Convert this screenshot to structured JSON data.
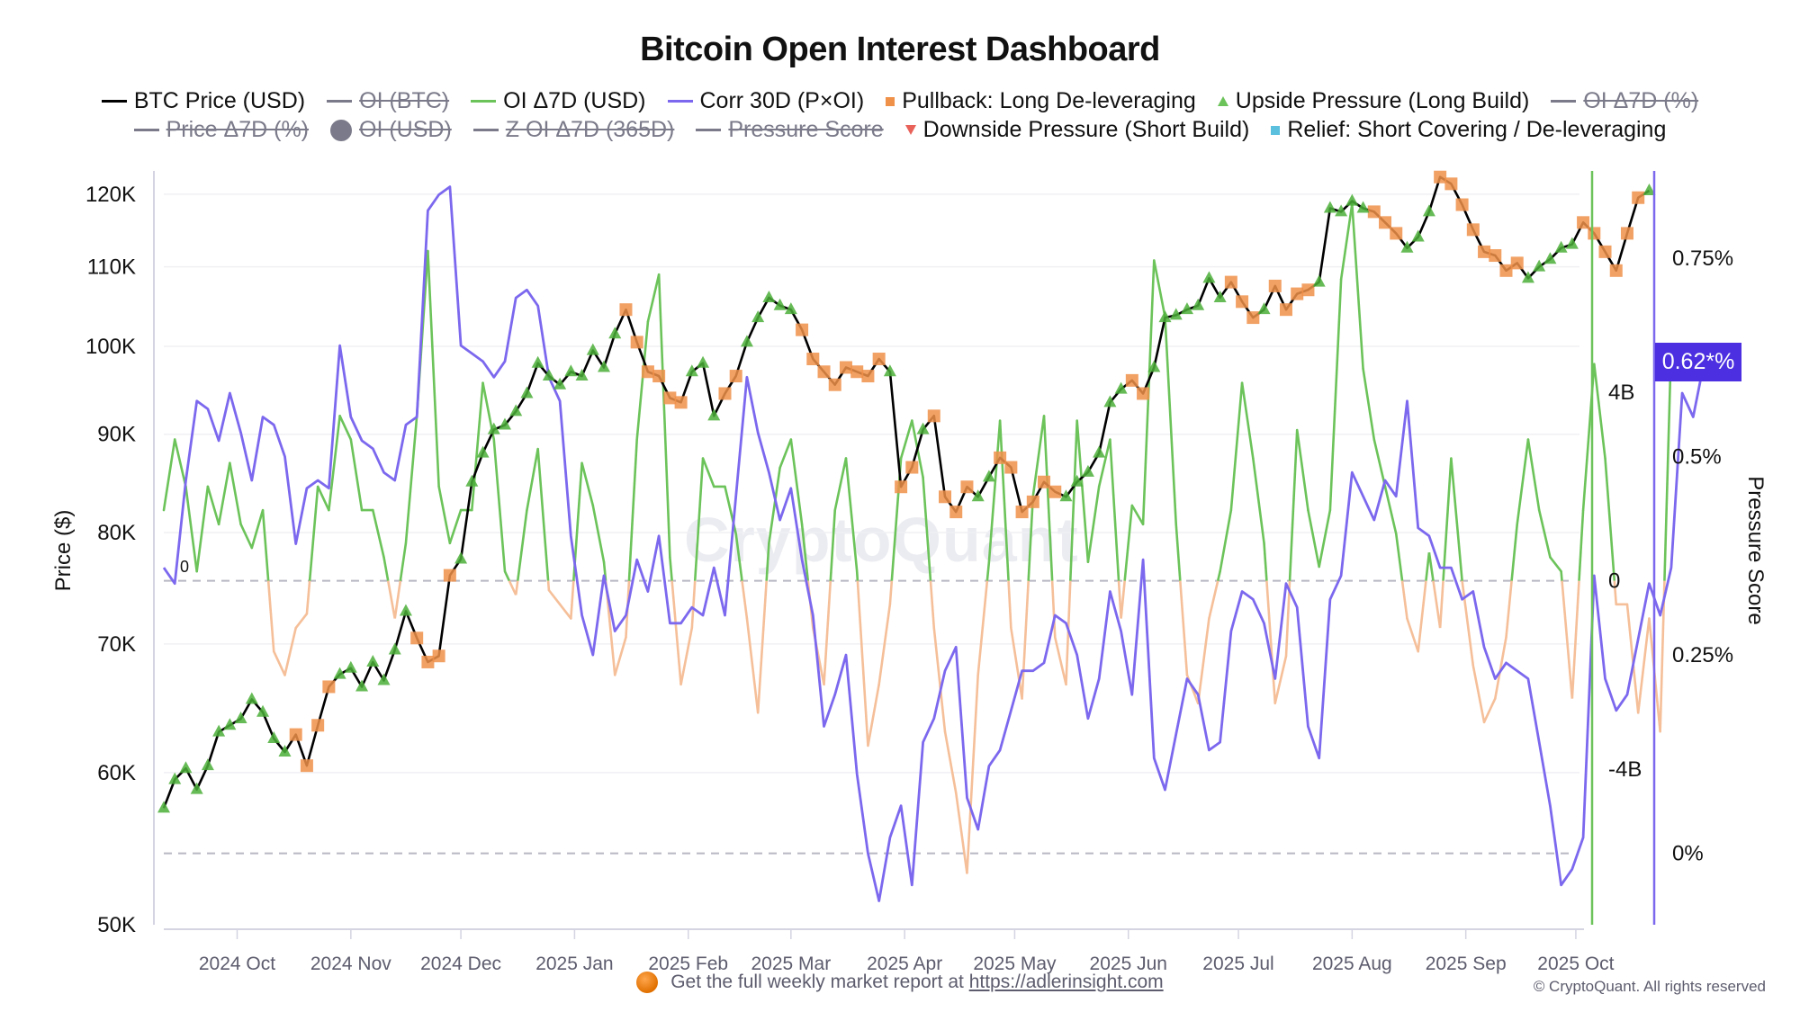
{
  "page": {
    "title": "Bitcoin Open Interest Dashboard",
    "watermark": "CryptoQuant",
    "footer_text": "Get the full weekly market report at",
    "footer_link": "https://adlerinsight.com",
    "copyright": "© CryptoQuant. All rights reserved",
    "current_value_badge": "0.62*%"
  },
  "legend": {
    "row1": [
      {
        "label": "BTC Price (USD)",
        "marker": "line",
        "color": "#000000",
        "active": true
      },
      {
        "label": "OI (BTC)",
        "marker": "line",
        "color": "#7a7a8a",
        "active": false
      },
      {
        "label": "OI Δ7D (USD)",
        "marker": "line",
        "color": "#6cc35a",
        "active": true
      },
      {
        "label": "Corr 30D (P×OI)",
        "marker": "line",
        "color": "#7b68ee",
        "active": true
      },
      {
        "label": "Pullback: Long De-leveraging",
        "marker": "square",
        "color": "#f0914a",
        "active": true
      },
      {
        "label": "Upside Pressure (Long Build)",
        "marker": "triangle-up",
        "color": "#6cc35a",
        "active": true
      },
      {
        "label": "OI Δ7D (%)",
        "marker": "line",
        "color": "#7a7a8a",
        "active": false
      }
    ],
    "row2": [
      {
        "label": "Price Δ7D (%)",
        "marker": "line",
        "color": "#7a7a8a",
        "active": false
      },
      {
        "label": "OI (USD)",
        "marker": "dot",
        "color": "#7a7a8a",
        "active": false
      },
      {
        "label": "Z OI Δ7D (365D)",
        "marker": "line",
        "color": "#7a7a8a",
        "active": false
      },
      {
        "label": "Pressure Score",
        "marker": "line",
        "color": "#7a7a8a",
        "active": false
      },
      {
        "label": "Downside Pressure (Short Build)",
        "marker": "triangle-down",
        "color": "#e8625a",
        "active": true
      },
      {
        "label": "Relief: Short Covering / De-leveraging",
        "marker": "square",
        "color": "#5bc0de",
        "active": true
      }
    ]
  },
  "chart_data": {
    "type": "line",
    "title": "Bitcoin Open Interest Dashboard",
    "x_start": "2024-09-11",
    "x_end": "2025-10-02",
    "x_step_days": 3,
    "xlabel": "",
    "x_tick_labels": [
      "2024 Oct",
      "2024 Nov",
      "2024 Dec",
      "2025 Jan",
      "2025 Feb",
      "2025 Mar",
      "2025 Apr",
      "2025 May",
      "2025 Jun",
      "2025 Jul",
      "2025 Aug",
      "2025 Sep",
      "2025 Oct"
    ],
    "x_tick_dates": [
      "2024-10-01",
      "2024-11-01",
      "2024-12-01",
      "2025-01-01",
      "2025-02-01",
      "2025-03-01",
      "2025-04-01",
      "2025-05-01",
      "2025-06-01",
      "2025-07-01",
      "2025-08-01",
      "2025-09-01",
      "2025-10-01"
    ],
    "axes": {
      "price": {
        "label": "Price ($)",
        "scale": "log",
        "range": [
          50000,
          125000
        ],
        "ticks": [
          50000,
          60000,
          70000,
          80000,
          90000,
          100000,
          110000,
          120000
        ],
        "tick_labels": [
          "50K",
          "60K",
          "70K",
          "80K",
          "90K",
          "100K",
          "110K",
          "120K"
        ]
      },
      "oi_delta": {
        "label": "",
        "range": [
          -7.3,
          8.7
        ],
        "unit": "B USD",
        "ticks": [
          -4,
          0,
          4
        ],
        "tick_labels": [
          "-4B",
          "0",
          "4B"
        ],
        "zero_label": "0"
      },
      "pressure": {
        "label": "Pressure Score",
        "range": [
          -0.09,
          0.86
        ],
        "ticks": [
          0,
          0.25,
          0.5,
          0.75
        ],
        "tick_labels": [
          "0%",
          "0.25%",
          "0.5%",
          "0.75%"
        ],
        "current": 0.62
      }
    },
    "grid": true,
    "legend_position": "top",
    "series": [
      {
        "name": "BTC Price (USD)",
        "axis": "price",
        "color": "#000000",
        "values": [
          57500,
          59500,
          60300,
          58800,
          60500,
          63000,
          63500,
          64000,
          65500,
          64500,
          62500,
          61500,
          62800,
          60500,
          63500,
          66500,
          67500,
          68000,
          66500,
          68500,
          67000,
          69500,
          72800,
          70500,
          68500,
          69000,
          76000,
          77500,
          85000,
          88000,
          90500,
          91000,
          92500,
          94500,
          98000,
          96500,
          95500,
          97000,
          96500,
          99500,
          97500,
          101500,
          104500,
          100500,
          97000,
          96500,
          94000,
          93500,
          97000,
          98000,
          92000,
          94500,
          96500,
          100500,
          103500,
          106000,
          105000,
          104500,
          102000,
          98500,
          97000,
          95500,
          97500,
          97000,
          96500,
          98500,
          97000,
          84500,
          86500,
          90500,
          92000,
          83500,
          82000,
          84500,
          83500,
          85500,
          87500,
          86500,
          82000,
          83000,
          85000,
          84000,
          83500,
          85000,
          86000,
          88000,
          93500,
          95000,
          96000,
          94500,
          97500,
          103500,
          103800,
          104500,
          105000,
          108500,
          106000,
          108000,
          105500,
          103500,
          104500,
          107500,
          104500,
          106500,
          107000,
          108000,
          118000,
          117500,
          119000,
          118000,
          117500,
          116000,
          114500,
          112500,
          114000,
          117500,
          122500,
          121500,
          118500,
          115000,
          112000,
          111500,
          109500,
          110500,
          108500,
          110000,
          111000,
          112500,
          113000,
          116000,
          114500,
          112000,
          109500,
          114500,
          119500,
          120500
        ]
      },
      {
        "name": "OI Δ7D (USD)",
        "axis": "oi_delta",
        "color_positive": "#6cc35a",
        "color_negative": "#f5bf99",
        "unit": "B USD",
        "values": [
          1.5,
          3.0,
          2.0,
          0.2,
          2.0,
          1.2,
          2.5,
          1.2,
          0.7,
          1.5,
          -1.5,
          -2.0,
          -1.0,
          -0.7,
          2.0,
          1.5,
          3.5,
          3.0,
          1.5,
          1.5,
          0.5,
          -0.8,
          0.8,
          3.5,
          7.0,
          2.0,
          0.8,
          1.5,
          1.5,
          4.2,
          3.0,
          0.2,
          -0.3,
          1.5,
          2.8,
          -0.2,
          -0.5,
          -0.8,
          2.5,
          1.6,
          0.4,
          -2.0,
          -1.2,
          3.0,
          5.5,
          6.5,
          0.5,
          -2.2,
          -1.0,
          2.6,
          2.0,
          2.0,
          1.0,
          -0.8,
          -2.8,
          0.8,
          2.4,
          3.0,
          1.2,
          -1.0,
          -2.2,
          1.5,
          2.6,
          0.2,
          -3.5,
          -2.2,
          -0.5,
          2.6,
          3.4,
          2.2,
          -1.0,
          -3.2,
          -4.5,
          -6.2,
          -2.0,
          0.4,
          3.4,
          -1.0,
          -2.5,
          1.8,
          3.5,
          -1.2,
          -2.2,
          3.4,
          0.4,
          2.0,
          3.0,
          -0.8,
          1.6,
          1.2,
          6.8,
          5.6,
          1.2,
          -2.0,
          -2.6,
          -0.8,
          0.2,
          1.5,
          4.2,
          2.6,
          0.8,
          -2.6,
          -1.6,
          3.2,
          1.5,
          0.3,
          1.5,
          6.4,
          8.0,
          4.5,
          3.0,
          2.0,
          1.0,
          -0.8,
          -1.5,
          0.6,
          -1.0,
          2.6,
          0.0,
          -1.8,
          -3.0,
          -2.5,
          -1.2,
          1.2,
          3.0,
          1.5,
          0.5,
          0.2,
          -2.5,
          1.5,
          4.6,
          2.6,
          -0.5,
          -0.5,
          -2.8,
          -0.8,
          -3.2,
          5.0
        ]
      },
      {
        "name": "Corr 30D (P×OI)",
        "axis": "pressure",
        "color": "#7b68ee",
        "values": [
          0.36,
          0.34,
          0.47,
          0.57,
          0.56,
          0.52,
          0.58,
          0.53,
          0.47,
          0.55,
          0.54,
          0.5,
          0.39,
          0.46,
          0.47,
          0.46,
          0.64,
          0.55,
          0.52,
          0.51,
          0.48,
          0.47,
          0.54,
          0.55,
          0.81,
          0.83,
          0.84,
          0.64,
          0.63,
          0.62,
          0.6,
          0.62,
          0.7,
          0.71,
          0.69,
          0.6,
          0.57,
          0.4,
          0.3,
          0.25,
          0.35,
          0.28,
          0.3,
          0.37,
          0.33,
          0.4,
          0.29,
          0.29,
          0.31,
          0.3,
          0.36,
          0.3,
          0.45,
          0.6,
          0.53,
          0.48,
          0.42,
          0.46,
          0.37,
          0.3,
          0.16,
          0.2,
          0.25,
          0.1,
          0.0,
          -0.06,
          0.02,
          0.06,
          -0.04,
          0.14,
          0.17,
          0.23,
          0.26,
          0.07,
          0.03,
          0.11,
          0.13,
          0.18,
          0.23,
          0.23,
          0.24,
          0.3,
          0.29,
          0.25,
          0.17,
          0.22,
          0.33,
          0.28,
          0.2,
          0.37,
          0.12,
          0.08,
          0.15,
          0.22,
          0.2,
          0.13,
          0.14,
          0.28,
          0.33,
          0.32,
          0.29,
          0.22,
          0.34,
          0.31,
          0.16,
          0.12,
          0.32,
          0.35,
          0.48,
          0.45,
          0.42,
          0.47,
          0.45,
          0.57,
          0.41,
          0.4,
          0.36,
          0.36,
          0.32,
          0.33,
          0.26,
          0.22,
          0.24,
          0.23,
          0.22,
          0.14,
          0.06,
          -0.04,
          -0.02,
          0.02,
          0.35,
          0.22,
          0.18,
          0.2,
          0.27,
          0.34,
          0.3,
          0.36,
          0.58,
          0.55,
          0.62
        ]
      }
    ],
    "markers": {
      "pullback_long_deleveraging": {
        "color": "#f0914a",
        "shape": "square",
        "indices": [
          12,
          13,
          14,
          15,
          23,
          24,
          25,
          26,
          42,
          43,
          44,
          45,
          46,
          47,
          51,
          52,
          58,
          59,
          60,
          61,
          62,
          63,
          64,
          65,
          67,
          68,
          70,
          71,
          72,
          73,
          76,
          77,
          78,
          79,
          80,
          81,
          88,
          89,
          97,
          98,
          99,
          101,
          102,
          103,
          104,
          110,
          111,
          112,
          116,
          117,
          118,
          119,
          120,
          121,
          122,
          123,
          129,
          130,
          131,
          132,
          133,
          134
        ]
      },
      "upside_pressure_long_build": {
        "color": "#6cc35a",
        "shape": "triangle-up",
        "indices": [
          0,
          1,
          2,
          3,
          4,
          5,
          6,
          7,
          8,
          9,
          10,
          11,
          16,
          17,
          18,
          19,
          20,
          21,
          22,
          27,
          28,
          29,
          30,
          31,
          32,
          33,
          34,
          35,
          36,
          37,
          38,
          39,
          40,
          41,
          48,
          49,
          50,
          53,
          54,
          55,
          56,
          57,
          66,
          69,
          74,
          75,
          82,
          83,
          84,
          85,
          86,
          87,
          90,
          91,
          92,
          93,
          94,
          95,
          96,
          100,
          105,
          106,
          107,
          108,
          109,
          113,
          114,
          115,
          124,
          125,
          126,
          127,
          128,
          135,
          136,
          137
        ]
      },
      "downside_pressure_short_build": {
        "color": "#e8625a",
        "shape": "triangle-down",
        "indices": []
      },
      "relief_short_covering": {
        "color": "#5bc0de",
        "shape": "square",
        "indices": []
      }
    }
  }
}
